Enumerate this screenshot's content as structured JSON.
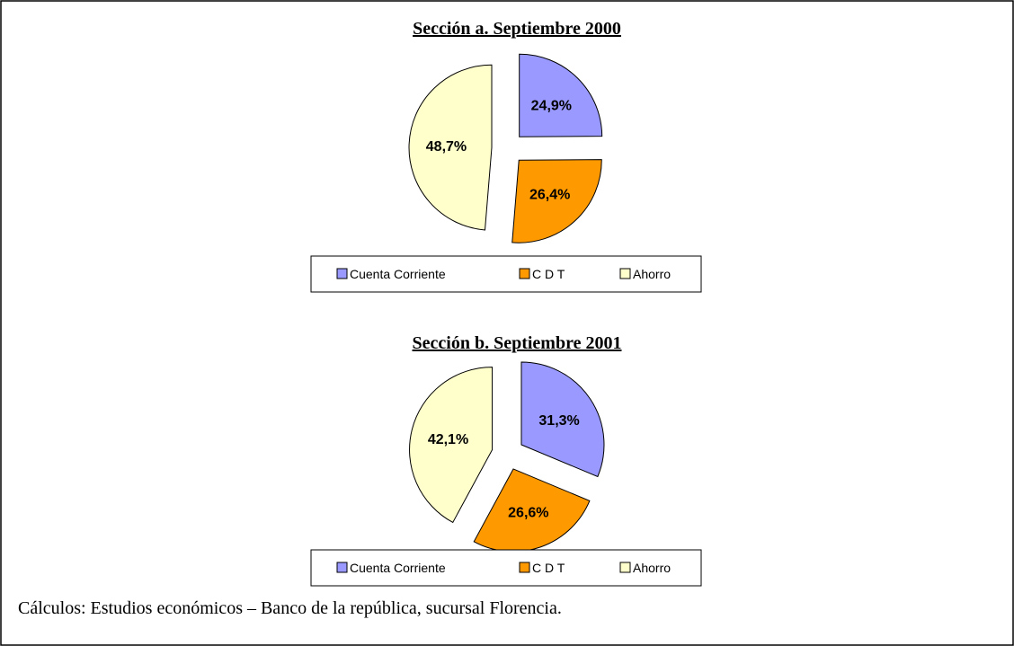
{
  "chart_data": [
    {
      "type": "pie",
      "title": "Sección a.   Septiembre 2000",
      "categories": [
        "Cuenta Corriente",
        "C D T",
        "Ahorro"
      ],
      "values": [
        24.9,
        26.4,
        48.7
      ],
      "value_labels": [
        "24,9%",
        "26,4%",
        "48,7%"
      ],
      "colors": [
        "#9999ff",
        "#ff9900",
        "#ffffcc"
      ]
    },
    {
      "type": "pie",
      "title": "Sección b.   Septiembre 2001",
      "categories": [
        "Cuenta Corriente",
        "C D T",
        "Ahorro"
      ],
      "values": [
        31.3,
        26.6,
        42.1
      ],
      "value_labels": [
        "31,3%",
        "26,6%",
        "42,1%"
      ],
      "colors": [
        "#9999ff",
        "#ff9900",
        "#ffffcc"
      ]
    }
  ],
  "source": "Cálculos:  Estudios económicos – Banco de la república, sucursal Florencia."
}
